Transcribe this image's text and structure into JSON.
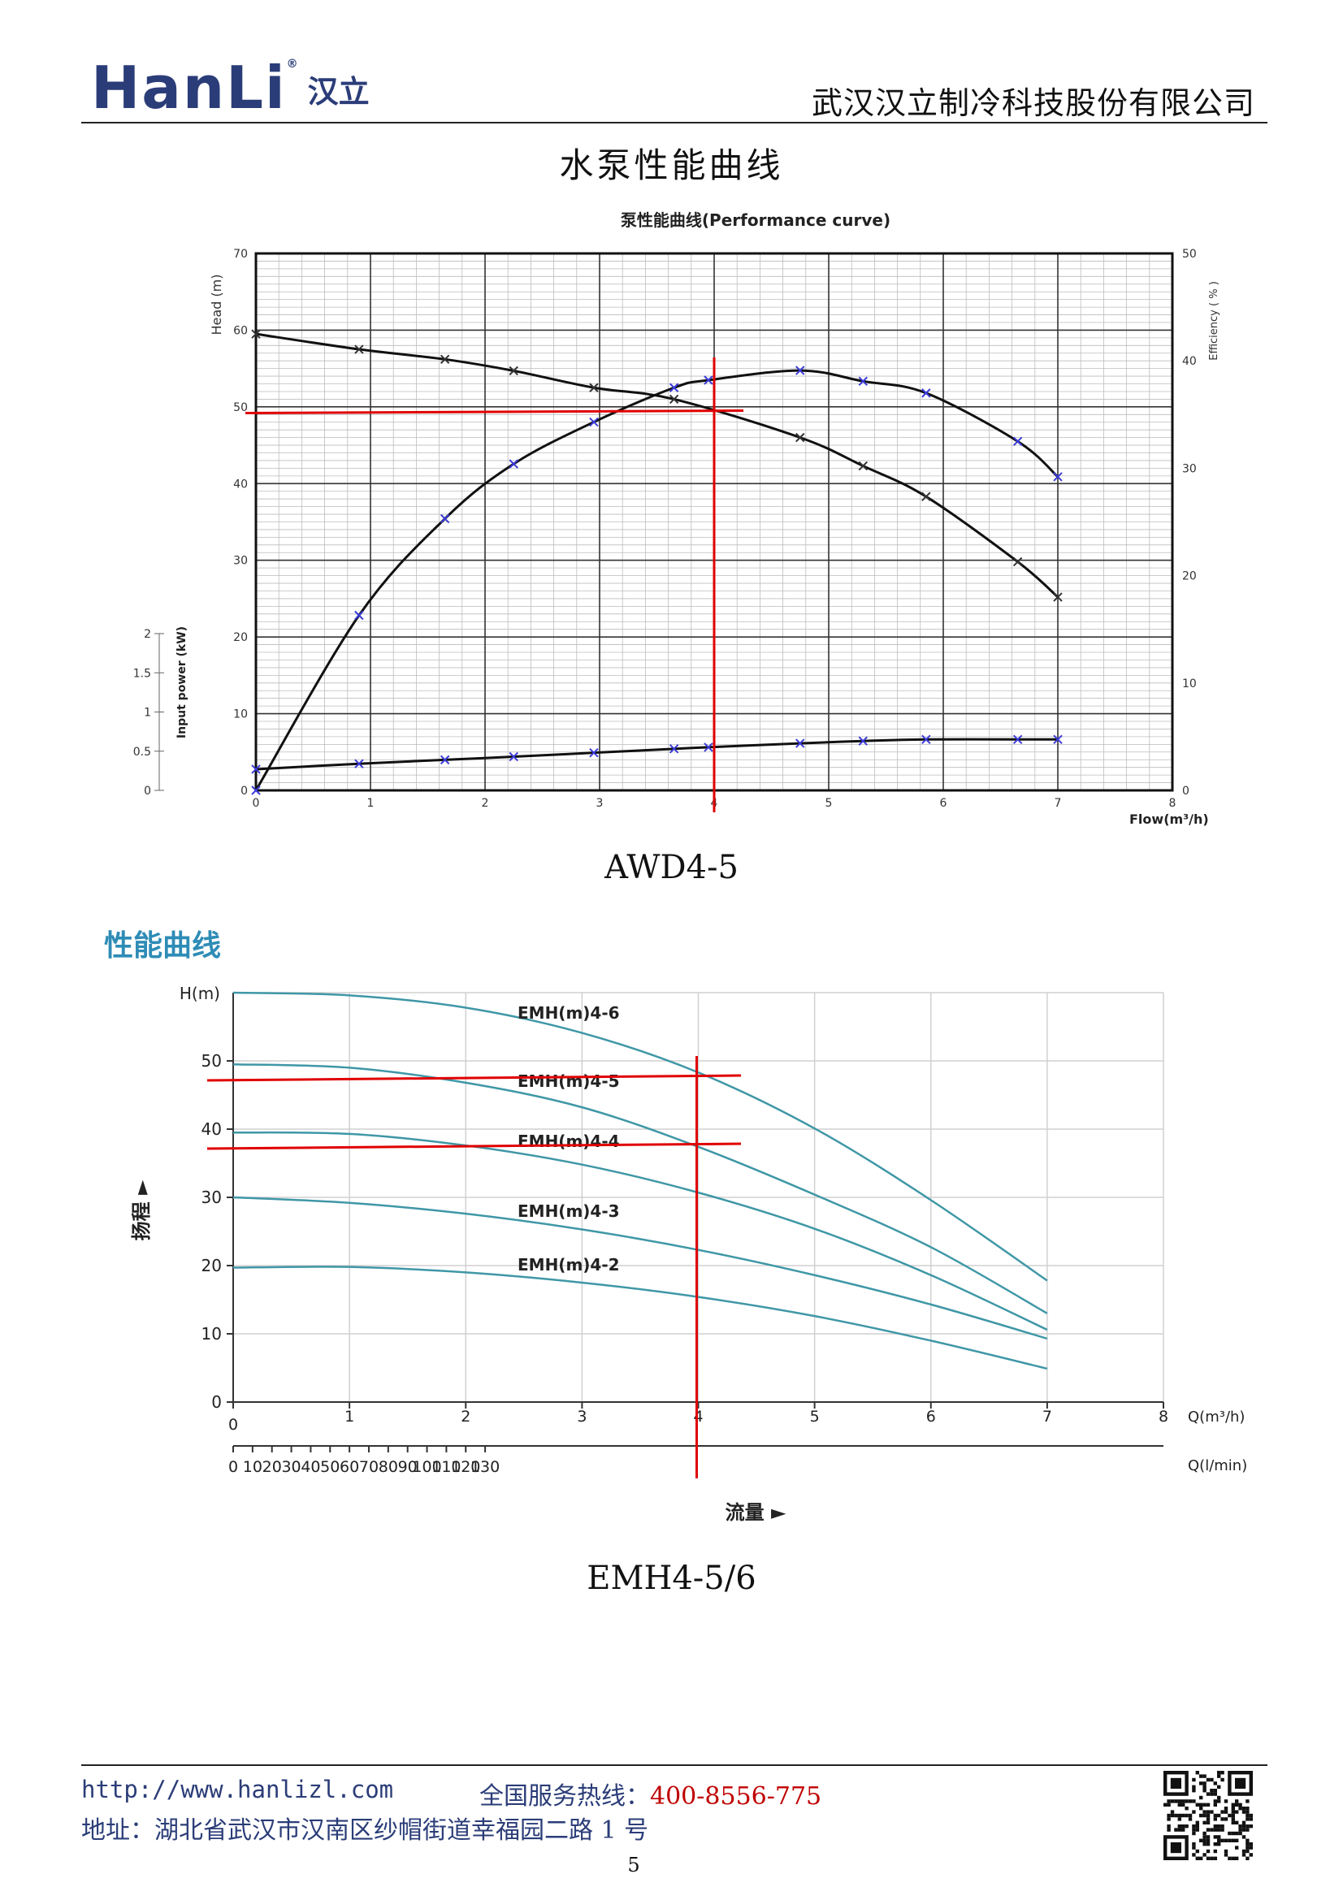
{
  "header": {
    "logo_text": "HanLi",
    "logo_cn": "汉立",
    "logo_mark": "®",
    "company": "武汉汉立制冷科技股份有限公司"
  },
  "doc_title": "水泵性能曲线",
  "chart_data": [
    {
      "type": "line",
      "title": "泵性能曲线(Performance curve)",
      "xlabel": "Flow(m³/h)",
      "ylabel": "Head (m)",
      "y2label": "Efficiency ( % )",
      "y3label": "Input power (kW)",
      "xlim": [
        0,
        8
      ],
      "ylim": [
        0,
        70
      ],
      "y2lim": [
        0,
        50
      ],
      "y3lim": [
        0,
        2
      ],
      "x_ticks": [
        "0",
        "1",
        "2",
        "3",
        "4",
        "5",
        "6",
        "7",
        "8"
      ],
      "y_ticks": [
        "0",
        "10",
        "20",
        "30",
        "40",
        "50",
        "60",
        "70"
      ],
      "y2_ticks": [
        "0",
        "10",
        "20",
        "30",
        "40",
        "50"
      ],
      "y3_ticks": [
        "0",
        "0.5",
        "1",
        "1.5",
        "2"
      ],
      "grid": true,
      "series": [
        {
          "name": "",
          "axis": "head",
          "color": "#111111",
          "x": [
            0,
            0.9,
            1.65,
            2.25,
            2.95,
            3.65,
            4.75,
            5.3,
            5.85,
            6.65,
            7.0
          ],
          "y": [
            59.5,
            57.5,
            56.2,
            54.7,
            52.5,
            51.0,
            46.0,
            42.3,
            38.3,
            29.8,
            25.2
          ]
        },
        {
          "name": "",
          "axis": "efficiency",
          "color": "#111111",
          "x": [
            0,
            0.9,
            1.65,
            2.25,
            2.95,
            3.65,
            3.95,
            4.75,
            5.3,
            5.85,
            6.65,
            7.0
          ],
          "y": [
            0,
            16.3,
            25.3,
            30.4,
            34.3,
            37.5,
            38.2,
            39.1,
            38.1,
            37.0,
            32.5,
            29.2
          ]
        },
        {
          "name": "",
          "axis": "power",
          "color": "#111111",
          "x": [
            0,
            0.9,
            1.65,
            2.25,
            2.95,
            3.65,
            3.95,
            4.75,
            5.3,
            5.85,
            6.65,
            7.0
          ],
          "y": [
            0.27,
            0.34,
            0.39,
            0.43,
            0.48,
            0.53,
            0.55,
            0.6,
            0.63,
            0.65,
            0.65,
            0.65
          ]
        }
      ],
      "reference_lines": {
        "color": "#e00000",
        "x": 4,
        "head": 49.3
      }
    },
    {
      "type": "line",
      "title": "性能曲线",
      "xlabel": "流量 ►",
      "ylabel": "扬程 ►",
      "x_unit": "Q(m³/h)",
      "x2_unit": "Q(l/min)",
      "y_unit": "H(m)",
      "xlim": [
        0,
        8
      ],
      "ylim": [
        0,
        60
      ],
      "x_ticks": [
        "0",
        "1",
        "2",
        "3",
        "4",
        "5",
        "6",
        "7",
        "8"
      ],
      "x2_ticks": [
        "0",
        "10",
        "20",
        "30",
        "40",
        "50",
        "60",
        "70",
        "80",
        "90",
        "100",
        "110",
        "120",
        "130"
      ],
      "y_ticks": [
        "0",
        "10",
        "20",
        "30",
        "40",
        "50"
      ],
      "grid": true,
      "series": [
        {
          "name": "EMH(m)4-6",
          "color": "#3f97a6",
          "x": [
            0,
            1,
            2,
            3,
            4,
            5,
            6,
            7
          ],
          "y": [
            60,
            59.6,
            57.8,
            54.1,
            48.3,
            40.1,
            29.6,
            17.8
          ]
        },
        {
          "name": "EMH(m)4-5",
          "color": "#3f97a6",
          "x": [
            0,
            1,
            2,
            3,
            4,
            5,
            6,
            7
          ],
          "y": [
            49.5,
            49.0,
            46.8,
            43.2,
            37.4,
            30.4,
            22.7,
            13
          ]
        },
        {
          "name": "EMH(m)4-4",
          "color": "#3f97a6",
          "x": [
            0,
            1,
            2,
            3,
            4,
            5,
            6,
            7
          ],
          "y": [
            39.5,
            39.3,
            37.6,
            34.8,
            30.7,
            25.4,
            18.6,
            10.6
          ]
        },
        {
          "name": "EMH(m)4-3",
          "color": "#3f97a6",
          "x": [
            0,
            1,
            2,
            3,
            4,
            5,
            6,
            7
          ],
          "y": [
            30,
            29.2,
            27.6,
            25.3,
            22.3,
            18.6,
            14.3,
            9.3
          ]
        },
        {
          "name": "EMH(m)4-2",
          "color": "#3f97a6",
          "x": [
            0,
            1,
            2,
            3,
            4,
            5,
            6,
            7
          ],
          "y": [
            19.7,
            19.8,
            19.0,
            17.5,
            15.4,
            12.6,
            9.0,
            4.9
          ]
        }
      ],
      "reference_lines": {
        "color": "#e00000",
        "x": 4,
        "heads": [
          47.5,
          37.5
        ]
      }
    }
  ],
  "captions": {
    "chart1": "AWD4-5",
    "chart2": "EMH4-5/6"
  },
  "section_title": "性能曲线",
  "footer": {
    "url": "http://www.hanlizl.com",
    "hotline_label": "全国服务热线：",
    "hotline_number": "400-8556-775",
    "address": "地址：湖北省武汉市汉南区纱帽街道幸福园二路 1 号",
    "page_number": "5"
  }
}
